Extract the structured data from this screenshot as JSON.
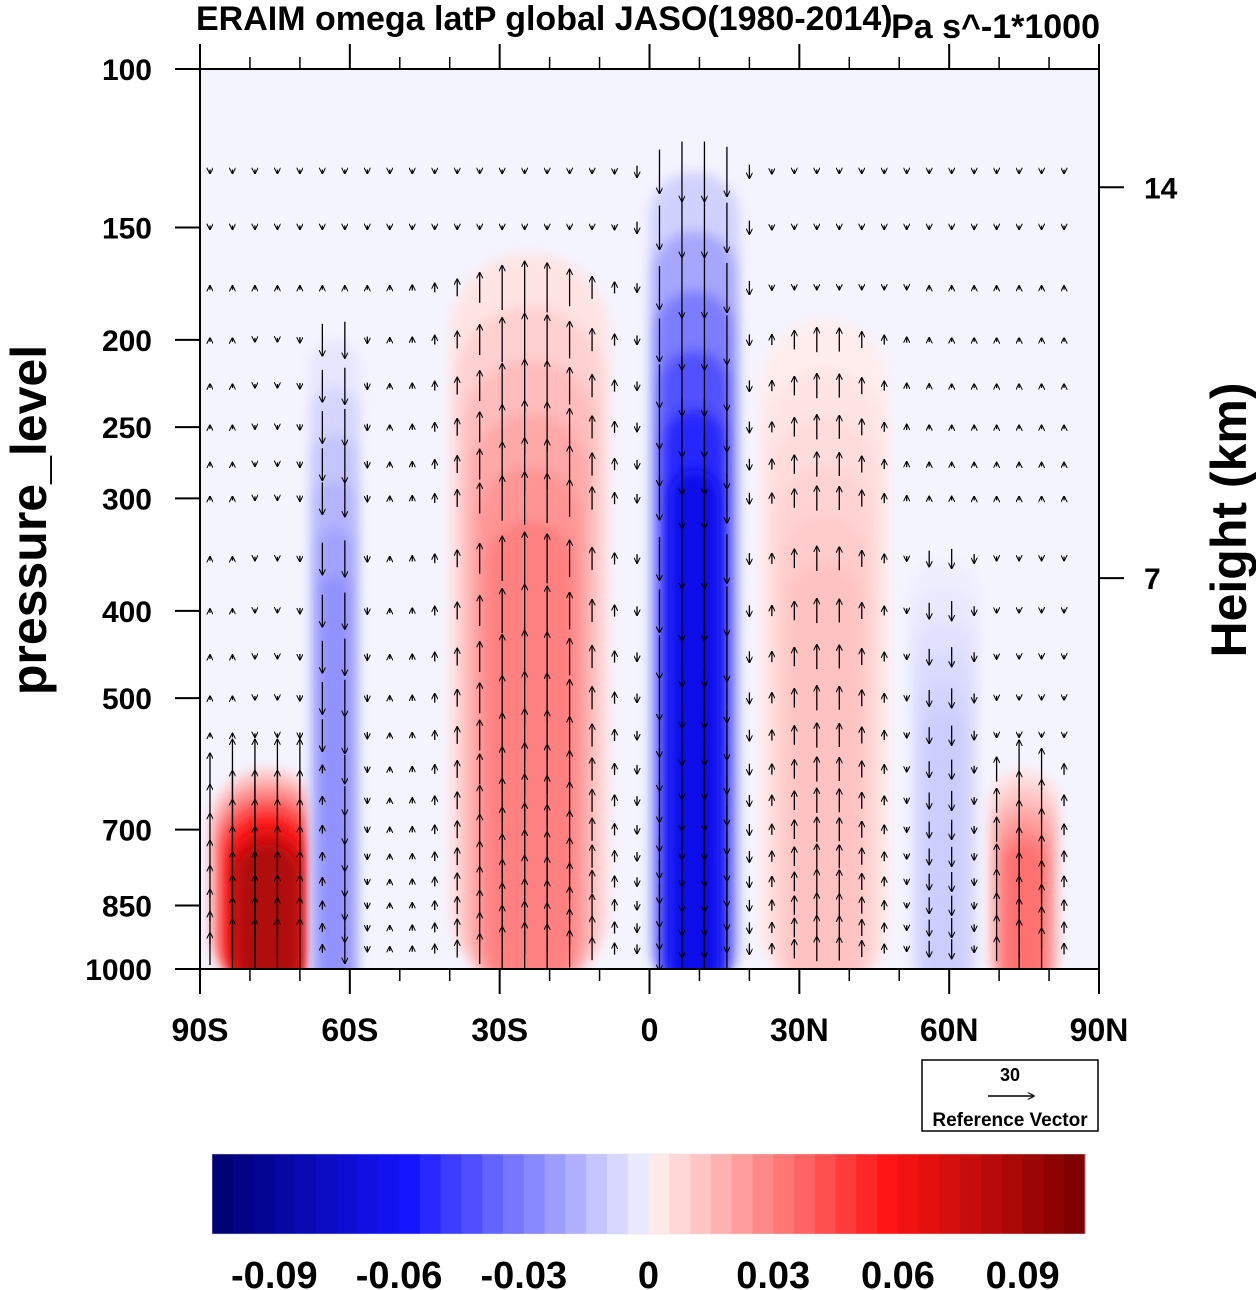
{
  "chart_data": {
    "type": "heatmap",
    "title": "ERAIM omega latP global JASO(1980-2014)",
    "units_label": "Pa s^-1*1000",
    "xlabel": "",
    "ylabel": "pressure_level",
    "y2label": "Height (km)",
    "x_tick_labels": [
      "90S",
      "60S",
      "30S",
      "0",
      "30N",
      "60N",
      "90N"
    ],
    "x_tick_values": [
      -90,
      -60,
      -30,
      0,
      30,
      60,
      90
    ],
    "xlim": [
      -90,
      90
    ],
    "y_tick_values": [
      100,
      150,
      200,
      250,
      300,
      400,
      500,
      700,
      850,
      1000
    ],
    "y_tick_labels": [
      "100",
      "150",
      "200",
      "250",
      "300",
      "400",
      "500",
      "700",
      "850",
      "1000"
    ],
    "ylim": [
      1000,
      100
    ],
    "y_scale": "log",
    "y2_tick_labels": [
      "14",
      "7"
    ],
    "y2_tick_values": [
      14,
      7
    ],
    "colorbar": {
      "tick_labels": [
        "-0.09",
        "-0.06",
        "-0.03",
        "0",
        "0.03",
        "0.06",
        "0.09"
      ],
      "tick_values": [
        -0.09,
        -0.06,
        -0.03,
        0,
        0.03,
        0.06,
        0.09
      ],
      "range": [
        -0.105,
        0.105
      ],
      "placement": "bottom"
    },
    "reference_vector": {
      "value": "30",
      "label": "Reference Vector"
    },
    "features": [
      {
        "description": "rising (red) cells near Antarctic coast",
        "lat_range": [
          -88,
          -65
        ],
        "p_range": [
          1000,
          600
        ],
        "max_value": 0.1
      },
      {
        "description": "descending (blue) branch",
        "lat_range": [
          -68,
          -58
        ],
        "p_range": [
          1000,
          200
        ],
        "min_value": -0.03
      },
      {
        "description": "rising (red) southern subtropics",
        "lat_range": [
          -40,
          -8
        ],
        "p_range": [
          1000,
          160
        ],
        "max_value": 0.035
      },
      {
        "description": "strong ascent (blue) ITCZ",
        "lat_range": [
          0,
          18
        ],
        "p_range": [
          1000,
          130
        ],
        "min_value": -0.075
      },
      {
        "description": "weak subsidence (red) northern subtropics",
        "lat_range": [
          22,
          48
        ],
        "p_range": [
          1000,
          190
        ],
        "max_value": 0.015
      },
      {
        "description": "ascent (blue) polar front",
        "lat_range": [
          52,
          66
        ],
        "p_range": [
          1000,
          350
        ],
        "min_value": -0.012
      },
      {
        "description": "subsidence (red) Arctic",
        "lat_range": [
          68,
          82
        ],
        "p_range": [
          1000,
          600
        ],
        "max_value": 0.04
      }
    ]
  }
}
